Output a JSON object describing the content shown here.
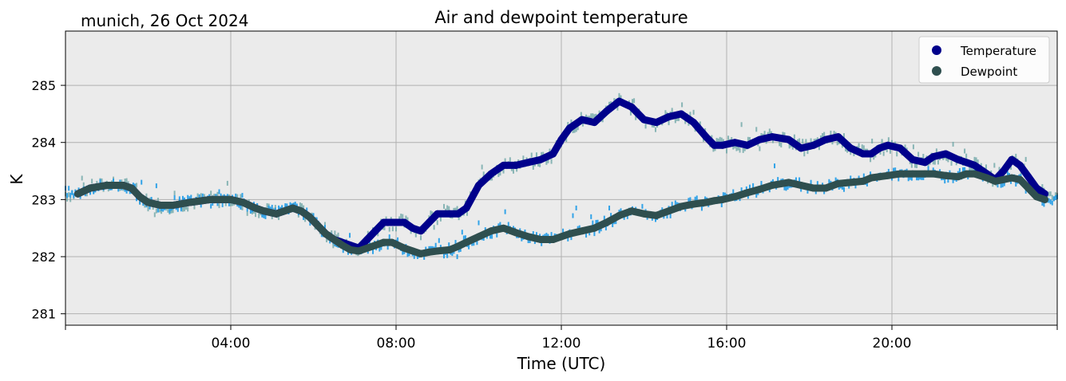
{
  "chart_data": {
    "type": "line",
    "title": "Air and dewpoint temperature",
    "subtitle": "munich, 26 Oct 2024",
    "xlabel": "Time (UTC)",
    "ylabel": "K",
    "x_unit": "hours UTC",
    "xlim": [
      0,
      24
    ],
    "ylim": [
      280.8,
      285.95
    ],
    "x_ticks": [
      {
        "value": 4,
        "label": "04:00"
      },
      {
        "value": 8,
        "label": "08:00"
      },
      {
        "value": 12,
        "label": "12:00"
      },
      {
        "value": 16,
        "label": "16:00"
      },
      {
        "value": 20,
        "label": "20:00"
      }
    ],
    "y_ticks": [
      {
        "value": 281,
        "label": "281"
      },
      {
        "value": 282,
        "label": "282"
      },
      {
        "value": 283,
        "label": "283"
      },
      {
        "value": 284,
        "label": "284"
      },
      {
        "value": 285,
        "label": "285"
      }
    ],
    "grid": true,
    "legend_position": "top-right",
    "background_color": "#ebebeb",
    "series": [
      {
        "name": "Temperature",
        "color": "#00008b",
        "raw_color": "#6fa8a8",
        "x": [
          0.3,
          0.6,
          1.0,
          1.4,
          1.6,
          1.8,
          2.0,
          2.3,
          2.6,
          3.0,
          3.5,
          4.0,
          4.3,
          4.6,
          4.8,
          5.1,
          5.3,
          5.5,
          5.7,
          5.9,
          6.1,
          6.3,
          6.5,
          6.7,
          6.9,
          7.1,
          7.3,
          7.5,
          7.7,
          7.9,
          8.2,
          8.4,
          8.6,
          8.8,
          9.0,
          9.3,
          9.5,
          9.7,
          10.0,
          10.3,
          10.6,
          10.9,
          11.2,
          11.5,
          11.8,
          12.0,
          12.2,
          12.5,
          12.8,
          13.1,
          13.4,
          13.7,
          14.0,
          14.3,
          14.6,
          14.9,
          15.2,
          15.5,
          15.7,
          15.9,
          16.2,
          16.5,
          16.8,
          17.1,
          17.5,
          17.8,
          18.1,
          18.4,
          18.7,
          19.0,
          19.3,
          19.5,
          19.7,
          19.9,
          20.2,
          20.5,
          20.8,
          21.0,
          21.3,
          21.6,
          21.8,
          22.0,
          22.3,
          22.5,
          22.7,
          22.9,
          23.1,
          23.3,
          23.5,
          23.7
        ],
        "values": [
          283.1,
          283.2,
          283.25,
          283.25,
          283.2,
          283.05,
          282.95,
          282.9,
          282.9,
          282.95,
          283.0,
          283.0,
          282.95,
          282.85,
          282.8,
          282.75,
          282.8,
          282.85,
          282.8,
          282.7,
          282.55,
          282.4,
          282.3,
          282.25,
          282.2,
          282.15,
          282.3,
          282.45,
          282.6,
          282.6,
          282.6,
          282.5,
          282.45,
          282.6,
          282.75,
          282.75,
          282.75,
          282.85,
          283.25,
          283.45,
          283.6,
          283.6,
          283.65,
          283.7,
          283.8,
          284.05,
          284.25,
          284.4,
          284.35,
          284.55,
          284.72,
          284.62,
          284.4,
          284.35,
          284.45,
          284.5,
          284.35,
          284.1,
          283.95,
          283.95,
          284.0,
          283.95,
          284.05,
          284.1,
          284.05,
          283.9,
          283.95,
          284.05,
          284.1,
          283.9,
          283.8,
          283.8,
          283.9,
          283.95,
          283.9,
          283.7,
          283.65,
          283.75,
          283.8,
          283.7,
          283.65,
          283.6,
          283.45,
          283.35,
          283.5,
          283.7,
          283.6,
          283.4,
          283.2,
          283.1
        ]
      },
      {
        "name": "Dewpoint",
        "color": "#2f4f4f",
        "raw_color": "#1e9be8",
        "x": [
          0.3,
          0.6,
          1.0,
          1.4,
          1.6,
          1.8,
          2.0,
          2.3,
          2.6,
          3.0,
          3.5,
          4.0,
          4.3,
          4.6,
          4.8,
          5.1,
          5.3,
          5.5,
          5.7,
          5.9,
          6.1,
          6.3,
          6.5,
          6.7,
          6.9,
          7.1,
          7.3,
          7.5,
          7.7,
          7.9,
          8.2,
          8.4,
          8.6,
          8.8,
          9.0,
          9.3,
          9.5,
          9.7,
          10.0,
          10.3,
          10.6,
          10.9,
          11.2,
          11.5,
          11.8,
          12.0,
          12.2,
          12.5,
          12.8,
          13.1,
          13.4,
          13.7,
          14.0,
          14.3,
          14.6,
          14.9,
          15.2,
          15.5,
          15.7,
          15.9,
          16.2,
          16.5,
          16.8,
          17.1,
          17.5,
          17.8,
          18.1,
          18.4,
          18.7,
          19.0,
          19.3,
          19.5,
          19.7,
          19.9,
          20.2,
          20.5,
          20.8,
          21.0,
          21.3,
          21.6,
          21.8,
          22.0,
          22.3,
          22.5,
          22.7,
          22.9,
          23.1,
          23.3,
          23.5,
          23.7
        ],
        "values": [
          283.1,
          283.2,
          283.25,
          283.25,
          283.2,
          283.05,
          282.95,
          282.9,
          282.9,
          282.95,
          283.0,
          283.0,
          282.95,
          282.85,
          282.8,
          282.75,
          282.8,
          282.85,
          282.8,
          282.7,
          282.55,
          282.4,
          282.3,
          282.2,
          282.12,
          282.1,
          282.15,
          282.2,
          282.25,
          282.25,
          282.15,
          282.1,
          282.05,
          282.08,
          282.1,
          282.12,
          282.18,
          282.25,
          282.35,
          282.45,
          282.5,
          282.42,
          282.35,
          282.3,
          282.3,
          282.35,
          282.4,
          282.45,
          282.5,
          282.6,
          282.72,
          282.8,
          282.75,
          282.72,
          282.8,
          282.88,
          282.92,
          282.95,
          282.98,
          283.0,
          283.05,
          283.12,
          283.18,
          283.25,
          283.3,
          283.25,
          283.2,
          283.2,
          283.28,
          283.3,
          283.32,
          283.38,
          283.4,
          283.42,
          283.45,
          283.45,
          283.45,
          283.45,
          283.42,
          283.4,
          283.45,
          283.45,
          283.38,
          283.32,
          283.35,
          283.38,
          283.35,
          283.2,
          283.05,
          283.0
        ]
      }
    ]
  }
}
